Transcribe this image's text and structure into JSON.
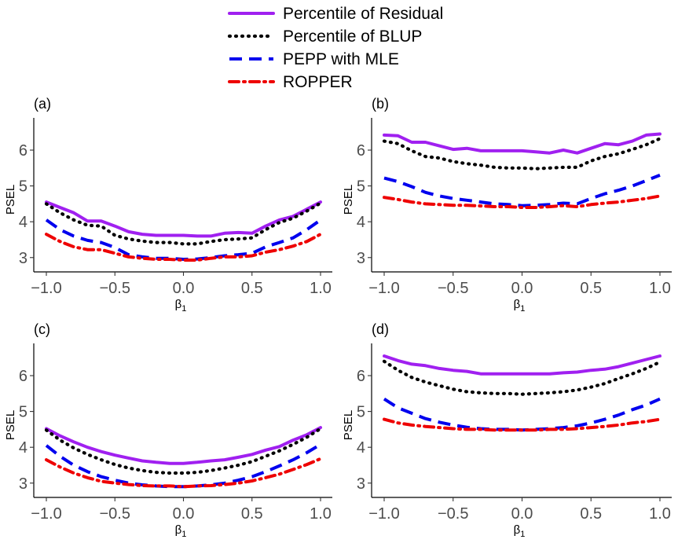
{
  "legend": [
    {
      "key": "residual",
      "label": "Percentile of Residual"
    },
    {
      "key": "blup",
      "label": "Percentile of BLUP"
    },
    {
      "key": "pepp",
      "label": "PEPP with MLE"
    },
    {
      "key": "ropper",
      "label": "ROPPER"
    }
  ],
  "series_styles": {
    "residual": {
      "color": "#A020F0",
      "dash": "solid"
    },
    "blup": {
      "color": "#000000",
      "dash": "dotted"
    },
    "pepp": {
      "color": "#0000EE",
      "dash": "dashed"
    },
    "ropper": {
      "color": "#EE0000",
      "dash": "dotdash"
    }
  },
  "chart_data": [
    {
      "panel": "(a)",
      "type": "line",
      "xlabel": "β",
      "xlabel_sub": "1",
      "ylabel": "PSEL",
      "xlim": [
        -1.0,
        1.0
      ],
      "ylim": [
        2.6,
        6.9
      ],
      "xticks": [
        -1.0,
        -0.5,
        0.0,
        0.5,
        1.0
      ],
      "xtick_labels": [
        "−1.0",
        "−0.5",
        "0.0",
        "0.5",
        "1.0"
      ],
      "yticks": [
        3,
        4,
        5,
        6
      ],
      "ytick_labels": [
        "3",
        "4",
        "5",
        "6"
      ],
      "x": [
        -1.0,
        -0.9,
        -0.8,
        -0.7,
        -0.6,
        -0.5,
        -0.4,
        -0.3,
        -0.2,
        -0.1,
        0.0,
        0.1,
        0.2,
        0.3,
        0.4,
        0.5,
        0.6,
        0.7,
        0.8,
        0.9,
        1.0
      ],
      "series": [
        {
          "name": "Percentile of Residual",
          "key": "residual",
          "values": [
            4.55,
            4.4,
            4.25,
            4.02,
            4.02,
            3.88,
            3.72,
            3.65,
            3.62,
            3.62,
            3.62,
            3.6,
            3.6,
            3.68,
            3.7,
            3.68,
            3.88,
            4.05,
            4.15,
            4.35,
            4.55
          ]
        },
        {
          "name": "Percentile of BLUP",
          "key": "blup",
          "values": [
            4.5,
            4.25,
            4.05,
            3.9,
            3.88,
            3.62,
            3.52,
            3.46,
            3.42,
            3.42,
            3.38,
            3.38,
            3.45,
            3.5,
            3.52,
            3.55,
            3.78,
            3.98,
            4.1,
            4.3,
            4.52
          ]
        },
        {
          "name": "PEPP with MLE",
          "key": "pepp",
          "values": [
            4.05,
            3.78,
            3.6,
            3.48,
            3.42,
            3.28,
            3.08,
            3.02,
            2.98,
            2.98,
            2.95,
            2.96,
            3.0,
            3.05,
            3.08,
            3.12,
            3.3,
            3.42,
            3.55,
            3.78,
            4.05
          ]
        },
        {
          "name": "ROPPER",
          "key": "ropper",
          "values": [
            3.65,
            3.45,
            3.3,
            3.22,
            3.22,
            3.12,
            3.02,
            2.98,
            2.95,
            2.95,
            2.93,
            2.93,
            2.98,
            3.02,
            3.02,
            3.05,
            3.15,
            3.22,
            3.32,
            3.45,
            3.65
          ]
        }
      ]
    },
    {
      "panel": "(b)",
      "type": "line",
      "xlabel": "β",
      "xlabel_sub": "1",
      "ylabel": "PSEL",
      "xlim": [
        -1.0,
        1.0
      ],
      "ylim": [
        2.6,
        6.9
      ],
      "xticks": [
        -1.0,
        -0.5,
        0.0,
        0.5,
        1.0
      ],
      "xtick_labels": [
        "−1.0",
        "−0.5",
        "0.0",
        "0.5",
        "1.0"
      ],
      "yticks": [
        3,
        4,
        5,
        6
      ],
      "ytick_labels": [
        "3",
        "4",
        "5",
        "6"
      ],
      "x": [
        -1.0,
        -0.9,
        -0.8,
        -0.7,
        -0.6,
        -0.5,
        -0.4,
        -0.3,
        -0.2,
        -0.1,
        0.0,
        0.1,
        0.2,
        0.3,
        0.4,
        0.5,
        0.6,
        0.7,
        0.8,
        0.9,
        1.0
      ],
      "series": [
        {
          "name": "Percentile of Residual",
          "key": "residual",
          "values": [
            6.42,
            6.4,
            6.22,
            6.22,
            6.12,
            6.02,
            6.05,
            5.98,
            5.98,
            5.98,
            5.98,
            5.95,
            5.92,
            6.0,
            5.92,
            6.05,
            6.18,
            6.15,
            6.25,
            6.42,
            6.45
          ]
        },
        {
          "name": "Percentile of BLUP",
          "key": "blup",
          "values": [
            6.25,
            6.18,
            5.98,
            5.82,
            5.78,
            5.68,
            5.62,
            5.58,
            5.52,
            5.5,
            5.5,
            5.48,
            5.5,
            5.52,
            5.52,
            5.7,
            5.82,
            5.9,
            6.02,
            6.15,
            6.32
          ]
        },
        {
          "name": "PEPP with MLE",
          "key": "pepp",
          "values": [
            5.22,
            5.12,
            4.98,
            4.82,
            4.72,
            4.65,
            4.6,
            4.55,
            4.5,
            4.48,
            4.45,
            4.46,
            4.48,
            4.52,
            4.5,
            4.65,
            4.78,
            4.88,
            5.0,
            5.15,
            5.3
          ]
        },
        {
          "name": "ROPPER",
          "key": "ropper",
          "values": [
            4.68,
            4.62,
            4.55,
            4.5,
            4.48,
            4.46,
            4.46,
            4.44,
            4.42,
            4.42,
            4.4,
            4.4,
            4.42,
            4.45,
            4.42,
            4.48,
            4.52,
            4.55,
            4.6,
            4.65,
            4.72
          ]
        }
      ]
    },
    {
      "panel": "(c)",
      "type": "line",
      "xlabel": "β",
      "xlabel_sub": "1",
      "ylabel": "PSEL",
      "xlim": [
        -1.0,
        1.0
      ],
      "ylim": [
        2.6,
        6.9
      ],
      "xticks": [
        -1.0,
        -0.5,
        0.0,
        0.5,
        1.0
      ],
      "xtick_labels": [
        "−1.0",
        "−0.5",
        "0.0",
        "0.5",
        "1.0"
      ],
      "yticks": [
        3,
        4,
        5,
        6
      ],
      "ytick_labels": [
        "3",
        "4",
        "5",
        "6"
      ],
      "x": [
        -1.0,
        -0.9,
        -0.8,
        -0.7,
        -0.6,
        -0.5,
        -0.4,
        -0.3,
        -0.2,
        -0.1,
        0.0,
        0.1,
        0.2,
        0.3,
        0.4,
        0.5,
        0.6,
        0.7,
        0.8,
        0.9,
        1.0
      ],
      "series": [
        {
          "name": "Percentile of Residual",
          "key": "residual",
          "values": [
            4.52,
            4.32,
            4.15,
            4.0,
            3.88,
            3.78,
            3.7,
            3.62,
            3.58,
            3.55,
            3.55,
            3.58,
            3.62,
            3.65,
            3.72,
            3.8,
            3.92,
            4.02,
            4.2,
            4.35,
            4.55
          ]
        },
        {
          "name": "Percentile of BLUP",
          "key": "blup",
          "values": [
            4.48,
            4.2,
            3.98,
            3.8,
            3.65,
            3.52,
            3.42,
            3.35,
            3.3,
            3.28,
            3.28,
            3.3,
            3.35,
            3.42,
            3.5,
            3.6,
            3.75,
            3.9,
            4.08,
            4.28,
            4.52
          ]
        },
        {
          "name": "PEPP with MLE",
          "key": "pepp",
          "values": [
            4.05,
            3.75,
            3.5,
            3.32,
            3.18,
            3.08,
            3.0,
            2.95,
            2.92,
            2.9,
            2.9,
            2.92,
            2.95,
            3.0,
            3.08,
            3.18,
            3.32,
            3.48,
            3.65,
            3.85,
            4.08
          ]
        },
        {
          "name": "ROPPER",
          "key": "ropper",
          "values": [
            3.65,
            3.45,
            3.28,
            3.15,
            3.05,
            3.0,
            2.96,
            2.93,
            2.92,
            2.92,
            2.9,
            2.92,
            2.93,
            2.96,
            3.0,
            3.06,
            3.15,
            3.25,
            3.38,
            3.52,
            3.68
          ]
        }
      ]
    },
    {
      "panel": "(d)",
      "type": "line",
      "xlabel": "β",
      "xlabel_sub": "1",
      "ylabel": "PSEL",
      "xlim": [
        -1.0,
        1.0
      ],
      "ylim": [
        2.6,
        6.9
      ],
      "xticks": [
        -1.0,
        -0.5,
        0.0,
        0.5,
        1.0
      ],
      "xtick_labels": [
        "−1.0",
        "−0.5",
        "0.0",
        "0.5",
        "1.0"
      ],
      "yticks": [
        3,
        4,
        5,
        6
      ],
      "ytick_labels": [
        "3",
        "4",
        "5",
        "6"
      ],
      "x": [
        -1.0,
        -0.9,
        -0.8,
        -0.7,
        -0.6,
        -0.5,
        -0.4,
        -0.3,
        -0.2,
        -0.1,
        0.0,
        0.1,
        0.2,
        0.3,
        0.4,
        0.5,
        0.6,
        0.7,
        0.8,
        0.9,
        1.0
      ],
      "series": [
        {
          "name": "Percentile of Residual",
          "key": "residual",
          "values": [
            6.55,
            6.42,
            6.32,
            6.28,
            6.2,
            6.15,
            6.12,
            6.05,
            6.05,
            6.05,
            6.05,
            6.05,
            6.05,
            6.08,
            6.1,
            6.15,
            6.18,
            6.25,
            6.35,
            6.45,
            6.55
          ]
        },
        {
          "name": "Percentile of BLUP",
          "key": "blup",
          "values": [
            6.4,
            6.15,
            5.95,
            5.82,
            5.72,
            5.62,
            5.55,
            5.52,
            5.5,
            5.5,
            5.48,
            5.5,
            5.52,
            5.55,
            5.6,
            5.68,
            5.78,
            5.92,
            6.05,
            6.2,
            6.38
          ]
        },
        {
          "name": "PEPP with MLE",
          "key": "pepp",
          "values": [
            5.35,
            5.1,
            4.95,
            4.8,
            4.7,
            4.62,
            4.56,
            4.52,
            4.5,
            4.5,
            4.48,
            4.5,
            4.52,
            4.55,
            4.6,
            4.68,
            4.78,
            4.9,
            5.05,
            5.18,
            5.35
          ]
        },
        {
          "name": "ROPPER",
          "key": "ropper",
          "values": [
            4.78,
            4.68,
            4.62,
            4.58,
            4.55,
            4.52,
            4.5,
            4.5,
            4.48,
            4.48,
            4.48,
            4.48,
            4.5,
            4.5,
            4.52,
            4.55,
            4.58,
            4.62,
            4.68,
            4.72,
            4.78
          ]
        }
      ]
    }
  ]
}
